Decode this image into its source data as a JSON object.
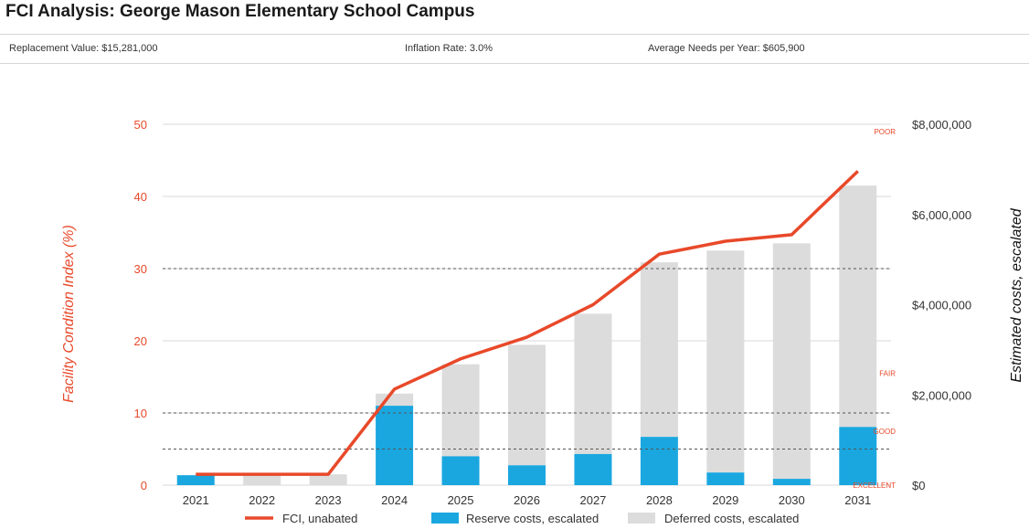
{
  "header": {
    "title": "FCI Analysis: George Mason Elementary School Campus",
    "replacement_value": "Replacement Value: $15,281,000",
    "inflation_rate": "Inflation Rate: 3.0%",
    "average_needs": "Average Needs per Year: $605,900"
  },
  "colors": {
    "fci_line": "#e8492a",
    "reserve": "#1aa7e0",
    "deferred": "#dcdcdc",
    "grid": "#d9d9d9",
    "zone_line": "#555555"
  },
  "chart_data": {
    "type": "bar",
    "categories": [
      "2021",
      "2022",
      "2023",
      "2024",
      "2025",
      "2026",
      "2027",
      "2028",
      "2029",
      "2030",
      "2031"
    ],
    "series": [
      {
        "name": "FCI, unabated",
        "kind": "line",
        "axis": "left",
        "values": [
          1.5,
          1.5,
          1.5,
          13.3,
          17.5,
          20.5,
          25.0,
          32.0,
          33.8,
          34.7,
          43.5
        ]
      },
      {
        "name": "Reserve costs, escalated",
        "kind": "bar-stack",
        "axis": "right",
        "values": [
          220000,
          0,
          0,
          1760000,
          640000,
          440000,
          690000,
          1070000,
          280000,
          140000,
          1290000
        ]
      },
      {
        "name": "Deferred costs, escalated",
        "kind": "bar-stack",
        "axis": "right",
        "values": [
          0,
          220000,
          240000,
          270000,
          2040000,
          2670000,
          3110000,
          3870000,
          4920000,
          5220000,
          5350000
        ]
      }
    ],
    "ylabel": "Facility Condition Index (%)",
    "ylabel_right": "Estimated costs, escalated",
    "ylim": [
      0,
      50
    ],
    "ylim_right": [
      0,
      8000000
    ],
    "yticks": [
      "0",
      "10",
      "20",
      "30",
      "40",
      "50"
    ],
    "yticks_right": [
      "$0",
      "$2,000,000",
      "$4,000,000",
      "$6,000,000",
      "$8,000,000"
    ],
    "threshold_lines": [
      5,
      10,
      30
    ],
    "zones": [
      {
        "label": "EXCELLENT",
        "value": 0
      },
      {
        "label": "GOOD",
        "value": 7.5
      },
      {
        "label": "FAIR",
        "value": 15.5
      },
      {
        "label": "POOR",
        "value": 49
      }
    ],
    "grid": true,
    "legend_position": "bottom"
  }
}
